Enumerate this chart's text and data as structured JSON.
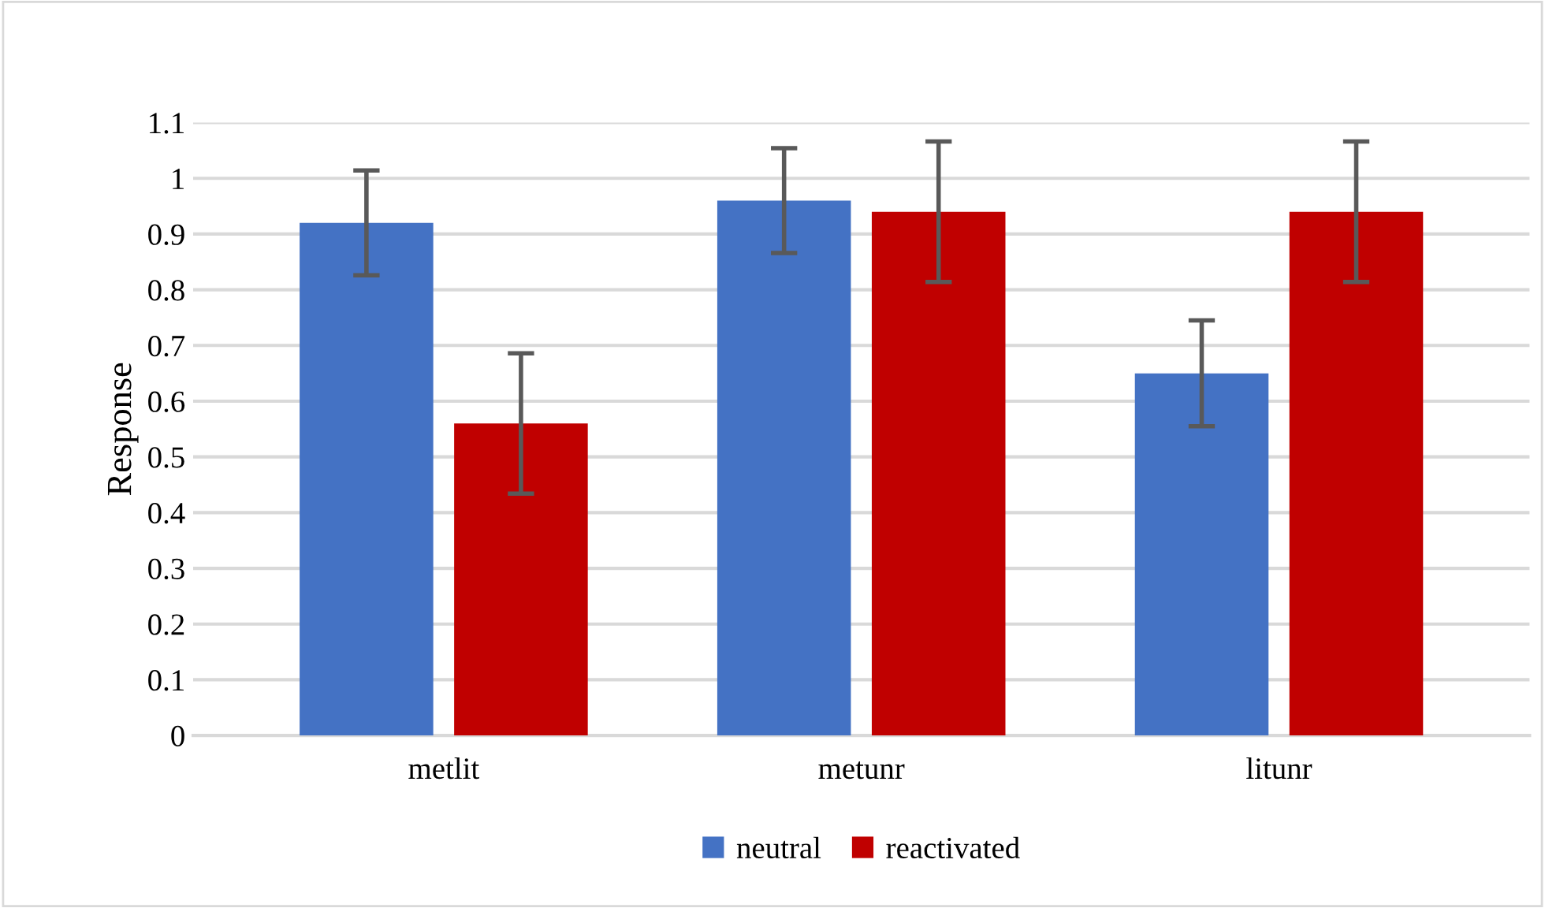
{
  "chart_data": {
    "type": "bar",
    "ylabel": "Response",
    "categories": [
      "metlit",
      "metunr",
      "litunr"
    ],
    "series": [
      {
        "name": "neutral",
        "color": "#4472c4",
        "values": [
          0.92,
          0.96,
          0.65
        ],
        "errors": [
          0.094,
          0.094,
          0.095
        ]
      },
      {
        "name": "reactivated",
        "color": "#c00000",
        "values": [
          0.56,
          0.94,
          0.94
        ],
        "errors": [
          0.126,
          0.126,
          0.126
        ]
      }
    ],
    "ylim": [
      0,
      1.1
    ],
    "yticks": [
      0,
      0.1,
      0.2,
      0.3,
      0.4,
      0.5,
      0.6,
      0.7,
      0.8,
      0.9,
      1,
      1.1
    ],
    "grid": "y",
    "legend": "bottom"
  }
}
